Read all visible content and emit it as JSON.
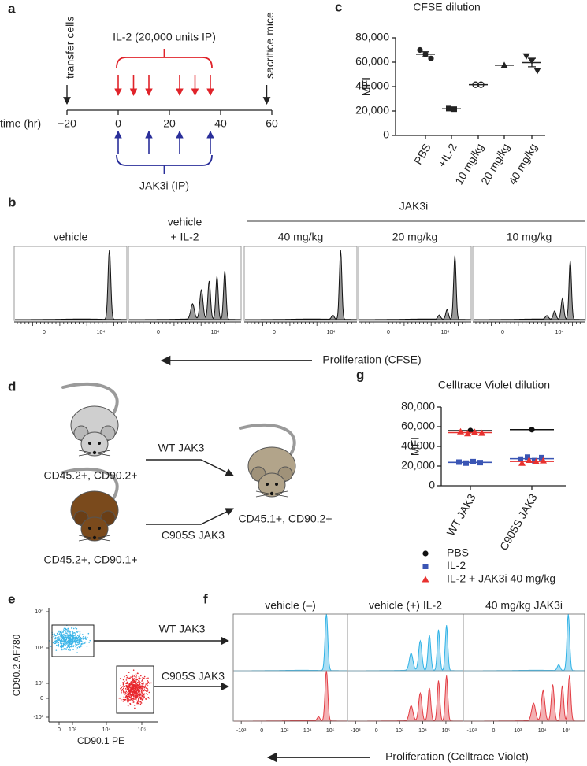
{
  "panel_a": {
    "label": "a",
    "start_event": "transfer cells",
    "end_event": "sacrifice mice",
    "il2_label": "IL-2 (20,000 units IP)",
    "jak3i_label": "JAK3i (IP)",
    "axis_title": "time (hr)",
    "xlim": [
      -20,
      60
    ],
    "xticks": [
      {
        "value": -20,
        "label": "−20"
      },
      0,
      20,
      40,
      60
    ],
    "transfer_time": -20,
    "sacrifice_time": 58,
    "il2_times": [
      0,
      6,
      12,
      24,
      30,
      36
    ],
    "jak3i_times": [
      0,
      12,
      24,
      36
    ]
  },
  "panel_b": {
    "label": "b",
    "group_label": "JAK3i",
    "columns": [
      [
        "vehicle"
      ],
      [
        "vehicle",
        "+ IL-2"
      ],
      [
        "40 mg/kg"
      ],
      [
        "20 mg/kg"
      ],
      [
        "10 mg/kg"
      ]
    ],
    "xticks": [
      "0",
      "10⁴"
    ],
    "axis_title": "Proliferation (CFSE)"
  },
  "chart_data": [
    {
      "type": "dot",
      "panel_label": "c",
      "title": "CFSE dilution",
      "ylabel": "MFI",
      "categories": [
        "PBS",
        "+IL-2",
        "10 mg/kg",
        "20 mg/kg",
        "40 mg/kg"
      ],
      "groups": [
        {
          "marker": "circle",
          "values": [
            70000,
            66500,
            63000
          ],
          "mean": 66500,
          "error": 2000
        },
        {
          "marker": "square",
          "values": [
            22000,
            21500
          ],
          "mean": 21750
        },
        {
          "marker": "circle-open",
          "values": [
            41500,
            41500
          ],
          "mean": 41500
        },
        {
          "marker": "triangle",
          "values": [
            57500
          ],
          "mean": 57500
        },
        {
          "marker": "triangle-down",
          "values": [
            65000,
            61000,
            53000
          ],
          "mean": 59700,
          "error": 3500
        }
      ],
      "color": "#222222",
      "ylim": [
        0,
        80000
      ],
      "yticks": [
        0,
        {
          "value": 20000,
          "label": "20,000"
        },
        {
          "value": 40000,
          "label": "40,000"
        },
        {
          "value": 60000,
          "label": "60,000"
        },
        {
          "value": 80000,
          "label": "80,000"
        }
      ]
    },
    {
      "type": "dot",
      "panel_label": "g",
      "title": "Celltrace Violet dilution",
      "ylabel": "MFI",
      "categories": [
        "WT JAK3",
        "C905S JAK3"
      ],
      "series": [
        {
          "name": "PBS",
          "color": "#111111",
          "marker": "circle",
          "values": [
            [
              56000
            ],
            [
              57000
            ]
          ],
          "means": [
            56000,
            57000
          ]
        },
        {
          "name": "IL-2",
          "color": "#3a55b4",
          "marker": "square",
          "values": [
            [
              24000,
              23000,
              24500,
              23500
            ],
            [
              27000,
              29000,
              25500,
              28500
            ]
          ],
          "means": [
            23750,
            27500
          ]
        },
        {
          "name": "IL-2 + JAK3i 40 mg/kg",
          "color": "#e8312f",
          "marker": "triangle",
          "values": [
            [
              55000,
              53000,
              54500,
              53500
            ],
            [
              23000,
              26000,
              24500,
              25500
            ]
          ],
          "means": [
            54000,
            24750
          ]
        }
      ],
      "ylim": [
        0,
        80000
      ],
      "yticks": [
        0,
        {
          "value": 20000,
          "label": "20,000"
        },
        {
          "value": 40000,
          "label": "40,000"
        },
        {
          "value": 60000,
          "label": "60,000"
        },
        {
          "value": 80000,
          "label": "80,000"
        }
      ],
      "legend": "bottom"
    }
  ],
  "panel_d": {
    "label": "d",
    "donor_1": "CD45.2+, CD90.2+",
    "donor_2": "CD45.2+, CD90.1+",
    "recipient": "CD45.1+, CD90.2+",
    "arrow_1": "WT JAK3",
    "arrow_2": "C905S JAK3"
  },
  "panel_e": {
    "label": "e",
    "xlabel": "CD90.1 PE",
    "ylabel": "CD90.2 AF780",
    "xticks": [
      "0",
      "10³",
      "10⁴",
      "10⁵"
    ],
    "yticks": [
      "10⁵",
      "10⁴",
      "10³",
      "0",
      "-10³"
    ],
    "gate_1": "WT JAK3",
    "gate_2": "C905S JAK3"
  },
  "panel_f": {
    "label": "f",
    "columns": [
      "vehicle (–)",
      "vehicle (+) IL-2",
      "40 mg/kg JAK3i"
    ],
    "xticks": [
      "-10³",
      "0",
      "10³",
      "10⁴",
      "10⁵"
    ],
    "axis_title": "Proliferation (Celltrace Violet)"
  }
}
